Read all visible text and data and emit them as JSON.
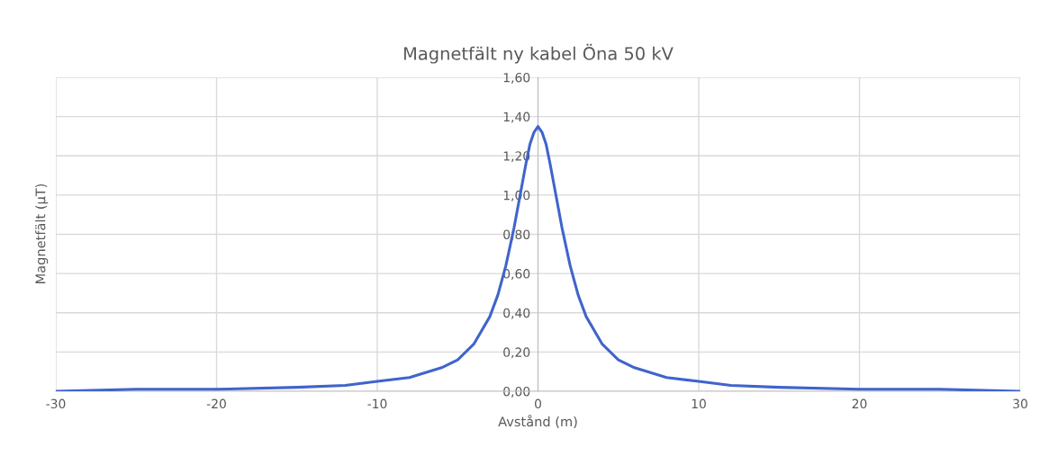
{
  "chart_data": {
    "type": "line",
    "title": "Magnetfält ny kabel Öna 50 kV",
    "xlabel": "Avstånd (m)",
    "ylabel": "Magnetfält (µT)",
    "x": [
      -30,
      -25,
      -20,
      -15,
      -12,
      -10,
      -8,
      -6,
      -5,
      -4,
      -3,
      -2.5,
      -2,
      -1.5,
      -1,
      -0.75,
      -0.5,
      -0.25,
      0,
      0.25,
      0.5,
      0.75,
      1,
      1.5,
      2,
      2.5,
      3,
      4,
      5,
      6,
      8,
      10,
      12,
      15,
      20,
      25,
      30
    ],
    "series": [
      {
        "color": "#4064cc",
        "values": [
          0.0,
          0.01,
          0.01,
          0.02,
          0.03,
          0.05,
          0.07,
          0.12,
          0.16,
          0.24,
          0.38,
          0.49,
          0.64,
          0.83,
          1.05,
          1.16,
          1.26,
          1.32,
          1.35,
          1.32,
          1.26,
          1.16,
          1.05,
          0.83,
          0.64,
          0.49,
          0.38,
          0.24,
          0.16,
          0.12,
          0.07,
          0.05,
          0.03,
          0.02,
          0.01,
          0.01,
          0.0
        ]
      }
    ],
    "xlim": [
      -30,
      30
    ],
    "xticks": [
      -30,
      -20,
      -10,
      0,
      10,
      20,
      30
    ],
    "ylim": [
      0,
      1.6
    ],
    "yticks": [
      {
        "value": 0,
        "label": "0,00"
      },
      {
        "value": 0.2,
        "label": "0,20"
      },
      {
        "value": 0.4,
        "label": "0,40"
      },
      {
        "value": 0.6,
        "label": "0,60"
      },
      {
        "value": 0.8,
        "label": "0,80"
      },
      {
        "value": 1.0,
        "label": "1,00"
      },
      {
        "value": 1.2,
        "label": "1,20"
      },
      {
        "value": 1.4,
        "label": "1,40"
      },
      {
        "value": 1.6,
        "label": "1,60"
      }
    ],
    "grid": true,
    "marker": "none",
    "line_style": "solid"
  }
}
